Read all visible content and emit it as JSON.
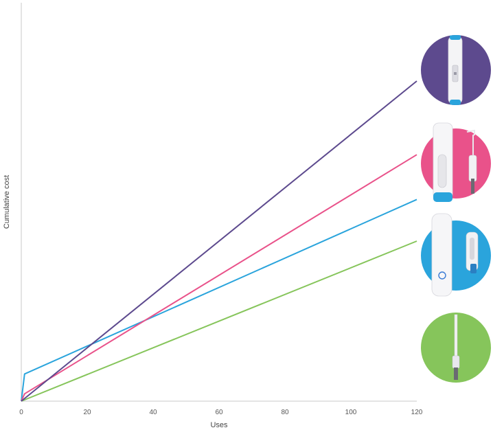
{
  "chart_data": {
    "type": "line",
    "xlabel": "Uses",
    "ylabel": "Cumulative cost",
    "xlim": [
      0,
      120
    ],
    "x_ticks": [
      0,
      20,
      40,
      60,
      80,
      100,
      120
    ],
    "ylim": [
      0,
      100
    ],
    "y_tick_labels_shown": false,
    "grid": false,
    "legend": "none (product images at right end of each line)",
    "series": [
      {
        "color": "#5d4a8e",
        "product_icon": "purple-pen-device-icon",
        "points": [
          [
            0,
            0
          ],
          [
            120,
            100
          ]
        ]
      },
      {
        "color": "#e9528a",
        "product_icon": "pink-device-with-applicator-icon",
        "points": [
          [
            0,
            0
          ],
          [
            1,
            2.3
          ],
          [
            120,
            77
          ]
        ]
      },
      {
        "color": "#2aa4dc",
        "product_icon": "blue-device-with-cartridge-icon",
        "points": [
          [
            0,
            0
          ],
          [
            1,
            8.5
          ],
          [
            120,
            63
          ]
        ]
      },
      {
        "color": "#86c55b",
        "product_icon": "green-applicator-icon",
        "points": [
          [
            0,
            0
          ],
          [
            120,
            50
          ]
        ]
      }
    ]
  }
}
